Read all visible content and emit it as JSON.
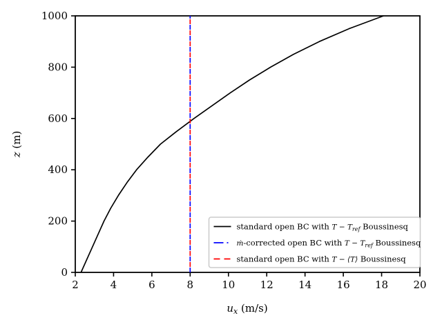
{
  "figure": {
    "background": "#ffffff",
    "accent_blue": "#0000ff",
    "accent_red": "#ff0000",
    "line_black": "#000000",
    "legend_border": "#cccccc"
  },
  "axes": {
    "xlabel": {
      "var": "u",
      "sub": "x",
      "unit": " (m/s)"
    },
    "ylabel": {
      "var": "z",
      "unit": " (m)"
    }
  },
  "chart_data": {
    "type": "line",
    "title": "",
    "xlabel": "u_x (m/s)",
    "ylabel": "z (m)",
    "xlim": [
      2,
      20
    ],
    "ylim": [
      0,
      1000
    ],
    "xticks": [
      2,
      4,
      6,
      8,
      10,
      12,
      14,
      16,
      18,
      20
    ],
    "yticks": [
      0,
      200,
      400,
      600,
      800,
      1000
    ],
    "grid": false,
    "legend_position": "lower right",
    "series": [
      {
        "name": "standard open BC with T − T_ref Boussinesq",
        "color": "#000000",
        "style": "solid",
        "x": [
          2.3,
          2.6,
          2.9,
          3.2,
          3.5,
          3.85,
          4.25,
          4.7,
          5.2,
          5.8,
          6.45,
          7.3,
          8.2,
          9.15,
          10.1,
          11.1,
          12.2,
          13.4,
          14.75,
          16.3,
          18.1
        ],
        "y": [
          0,
          50,
          100,
          150,
          200,
          250,
          300,
          350,
          400,
          450,
          500,
          550,
          600,
          650,
          700,
          750,
          800,
          850,
          900,
          950,
          1000
        ]
      },
      {
        "name": "ṁ-corrected open BC with T − T_ref Boussinesq",
        "color": "#0000ff",
        "style": "dashdot",
        "x": [
          8,
          8
        ],
        "y": [
          0,
          1000
        ]
      },
      {
        "name": "standard open BC with T − ⟨T⟩ Boussinesq",
        "color": "#ff0000",
        "style": "dashed",
        "x": [
          8,
          8
        ],
        "y": [
          0,
          1000
        ]
      }
    ],
    "legend_items": [
      {
        "marker_style": "solid",
        "marker_color": "#000000",
        "segments": [
          {
            "text": "standard open BC with ",
            "kind": "text"
          },
          {
            "text": "T − T",
            "kind": "math"
          },
          {
            "text": "ref",
            "kind": "sub"
          },
          {
            "text": " Boussinesq",
            "kind": "text"
          }
        ]
      },
      {
        "marker_style": "dashdot",
        "marker_color": "#0000ff",
        "segments": [
          {
            "text": "ṁ",
            "kind": "math"
          },
          {
            "text": "-corrected open BC with ",
            "kind": "text"
          },
          {
            "text": "T − T",
            "kind": "math"
          },
          {
            "text": "ref",
            "kind": "sub"
          },
          {
            "text": " Boussinesq",
            "kind": "text"
          }
        ]
      },
      {
        "marker_style": "dashed",
        "marker_color": "#ff0000",
        "segments": [
          {
            "text": "standard open BC with ",
            "kind": "text"
          },
          {
            "text": "T − ⟨T⟩",
            "kind": "math"
          },
          {
            "text": " Boussinesq",
            "kind": "text"
          }
        ]
      }
    ]
  }
}
